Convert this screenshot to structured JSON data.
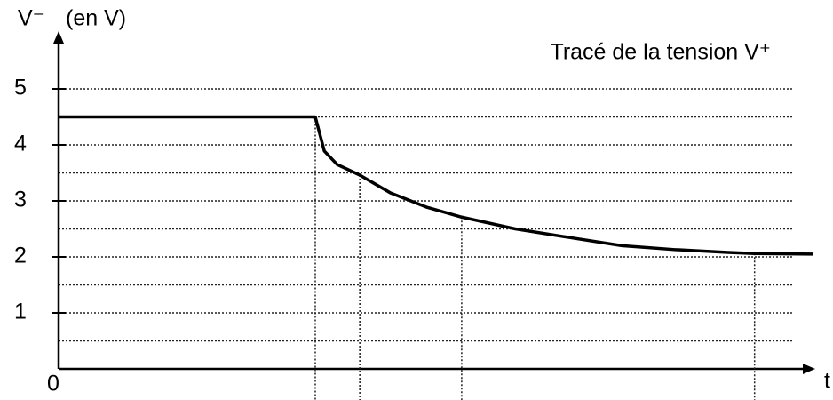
{
  "chart_data": {
    "type": "line",
    "title": "Tracé de la tension V⁺",
    "y_label": "V⁻",
    "y_unit": "(en V)",
    "x_label": "t",
    "x": [
      0,
      3.4,
      3.52,
      3.69,
      3.99,
      4.4,
      4.87,
      5.34,
      6.05,
      6.75,
      7.46,
      8.16,
      8.87,
      9.22,
      10
    ],
    "series": [
      {
        "name": "V+",
        "color": "#000000",
        "values": [
          4.5,
          4.5,
          3.89,
          3.65,
          3.46,
          3.14,
          2.89,
          2.71,
          2.5,
          2.35,
          2.2,
          2.13,
          2.08,
          2.06,
          2.05
        ]
      }
    ],
    "markers": [
      3.4,
      3.99,
      5.34,
      9.22
    ],
    "xlim": [
      0,
      10
    ],
    "ylim": [
      0,
      6
    ],
    "yticks": [
      0,
      1,
      2,
      3,
      4,
      5
    ],
    "yminor": [
      0.5,
      1.5,
      2.5,
      3.5,
      4.5
    ],
    "grid": true
  }
}
